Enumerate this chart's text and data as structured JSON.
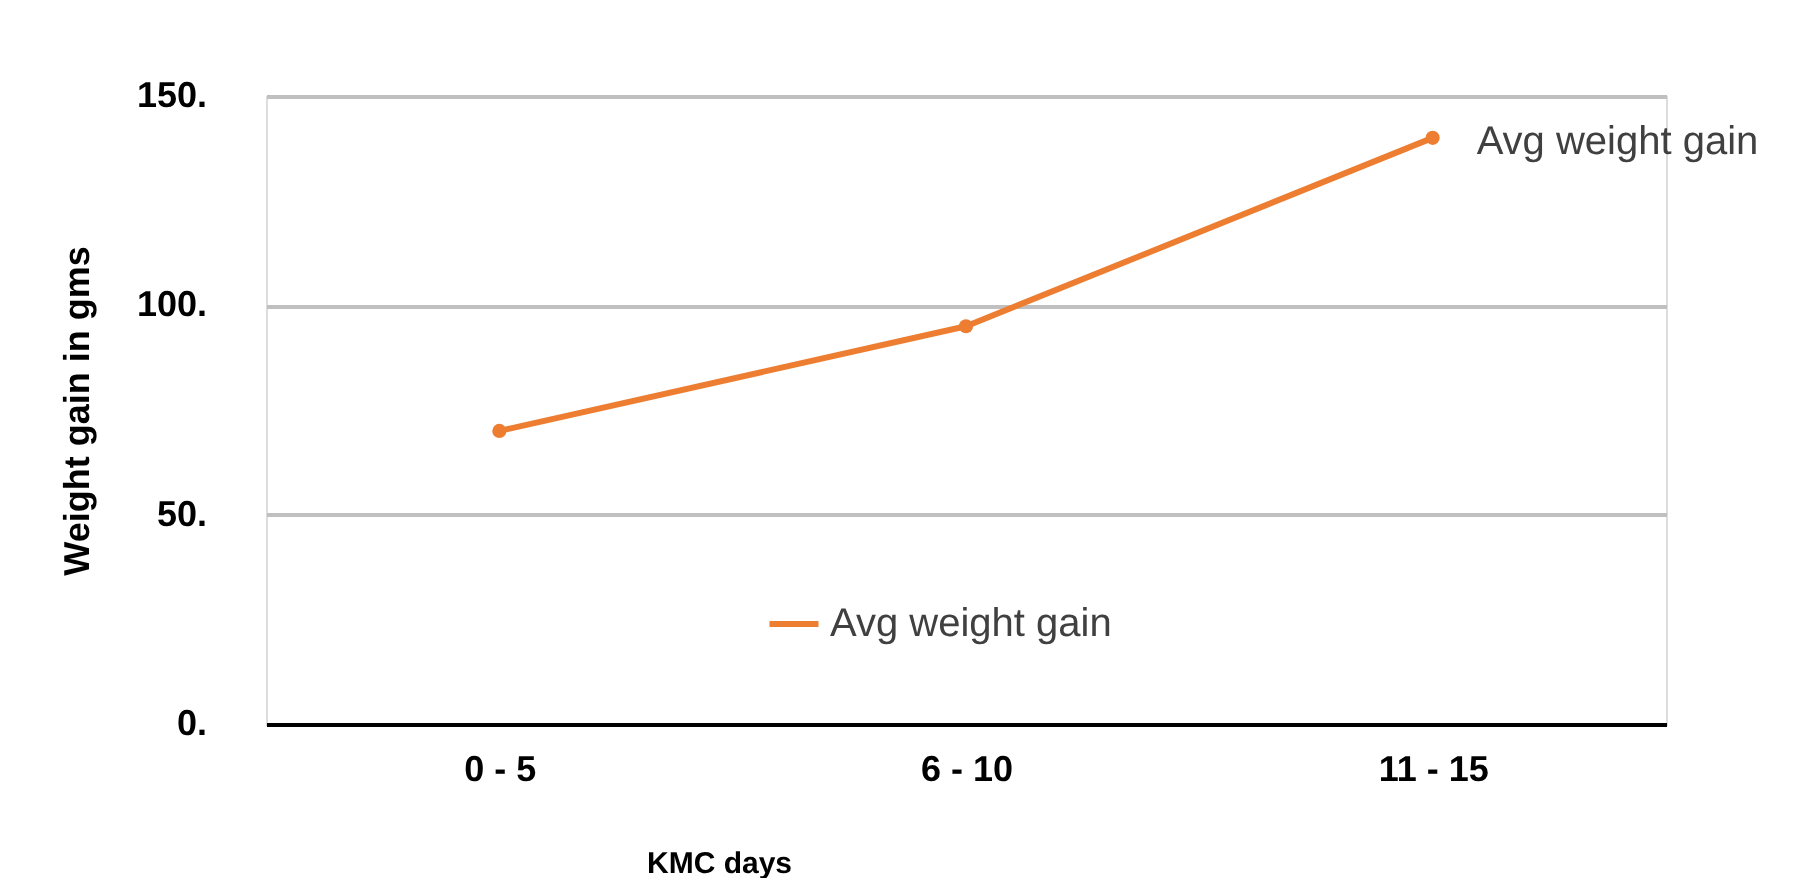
{
  "chart_data": {
    "type": "line",
    "xlabel": "KMC days",
    "ylabel": "Weight gain in gms",
    "categories": [
      "0 - 5",
      "6 - 10",
      "11 - 15"
    ],
    "series": [
      {
        "name": "Avg weight gain",
        "color": "#ed7d31",
        "values": [
          70,
          95,
          140
        ]
      }
    ],
    "ylim": [
      0,
      150
    ],
    "yticks": [
      {
        "value": 0,
        "label": "0."
      },
      {
        "value": 50,
        "label": "50."
      },
      {
        "value": 100,
        "label": "100."
      },
      {
        "value": 150,
        "label": "150."
      }
    ],
    "annotations": [
      {
        "text": "Avg weight gain",
        "x": "11 - 15",
        "y": 140
      }
    ],
    "grid": "y",
    "legend": "bottom",
    "marker": "circle",
    "line_style": "solid"
  }
}
